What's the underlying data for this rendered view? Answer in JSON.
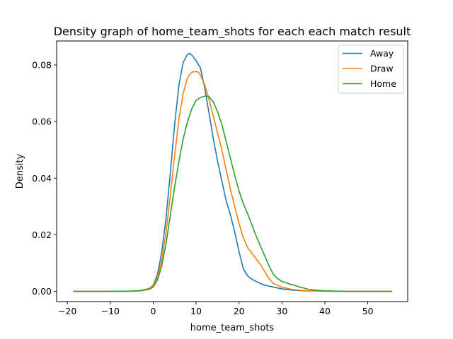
{
  "chart_data": {
    "type": "line",
    "title": "Density graph of home_team_shots for each each match result",
    "xlabel": "home_team_shots",
    "ylabel": "Density",
    "xlim": [
      -22.5,
      59.3
    ],
    "ylim": [
      -0.0036,
      0.0885
    ],
    "xticks": [
      -20,
      -10,
      0,
      10,
      20,
      30,
      40,
      50
    ],
    "xtick_labels": [
      "−20",
      "−10",
      "0",
      "10",
      "20",
      "30",
      "40",
      "50"
    ],
    "yticks": [
      0.0,
      0.02,
      0.04,
      0.06,
      0.08
    ],
    "ytick_labels": [
      "0.00",
      "0.02",
      "0.04",
      "0.06",
      "0.08"
    ],
    "grid": false,
    "legend_position": "top-right",
    "series": [
      {
        "name": "Away",
        "color": "#1f77b4",
        "x": [
          -18.5,
          -10,
          -5,
          -3,
          -1,
          0,
          1,
          2,
          3,
          4,
          5,
          6,
          7,
          8,
          8.5,
          9,
          10,
          11,
          12,
          13,
          14,
          15,
          16,
          17,
          18,
          19,
          20,
          21,
          22,
          23,
          24,
          25,
          26,
          28,
          30,
          32,
          35,
          40,
          45,
          50,
          55.5
        ],
        "y": [
          0,
          0,
          0.0001,
          0.0003,
          0.001,
          0.0022,
          0.006,
          0.014,
          0.026,
          0.042,
          0.059,
          0.073,
          0.081,
          0.0838,
          0.0841,
          0.0835,
          0.0815,
          0.079,
          0.072,
          0.063,
          0.054,
          0.046,
          0.039,
          0.032,
          0.027,
          0.021,
          0.014,
          0.008,
          0.0055,
          0.0043,
          0.0035,
          0.0028,
          0.0022,
          0.0015,
          0.0009,
          0.0005,
          0.0002,
          0.0001,
          0,
          0,
          0
        ]
      },
      {
        "name": "Draw",
        "color": "#ff7f0e",
        "x": [
          -18.5,
          -10,
          -5,
          -3,
          -1,
          0,
          1,
          2,
          3,
          4,
          5,
          6,
          7,
          8,
          9,
          10,
          10.5,
          11,
          12,
          13,
          14,
          15,
          16,
          17,
          18,
          19,
          20,
          21,
          22,
          23,
          24,
          25,
          26,
          27,
          28,
          30,
          32,
          34,
          36,
          40,
          45,
          50,
          55.5
        ],
        "y": [
          0,
          0,
          0.0001,
          0.0003,
          0.001,
          0.002,
          0.005,
          0.011,
          0.021,
          0.034,
          0.048,
          0.061,
          0.07,
          0.0755,
          0.0775,
          0.0777,
          0.0775,
          0.0765,
          0.073,
          0.068,
          0.062,
          0.056,
          0.05,
          0.043,
          0.036,
          0.03,
          0.024,
          0.019,
          0.0155,
          0.0135,
          0.0115,
          0.0095,
          0.007,
          0.0045,
          0.0028,
          0.0015,
          0.0008,
          0.0004,
          0.0002,
          0.0001,
          0,
          0,
          0
        ]
      },
      {
        "name": "Home",
        "color": "#2ca02c",
        "x": [
          -18.5,
          -10,
          -5,
          -3,
          -1,
          0,
          1,
          2,
          3,
          4,
          5,
          6,
          7,
          8,
          9,
          10,
          11,
          12,
          12.5,
          13,
          14,
          15,
          16,
          17,
          18,
          19,
          20,
          21,
          22,
          23,
          24,
          25,
          26,
          27,
          28,
          29,
          30,
          31,
          32,
          33,
          34,
          35,
          36,
          38,
          40,
          45,
          50,
          55.5
        ],
        "y": [
          0,
          0,
          0.0001,
          0.0002,
          0.0007,
          0.0015,
          0.004,
          0.009,
          0.017,
          0.027,
          0.037,
          0.046,
          0.054,
          0.06,
          0.0645,
          0.0675,
          0.0685,
          0.069,
          0.069,
          0.0688,
          0.067,
          0.0635,
          0.059,
          0.053,
          0.047,
          0.041,
          0.0355,
          0.031,
          0.0275,
          0.0235,
          0.0195,
          0.016,
          0.0125,
          0.009,
          0.006,
          0.0045,
          0.0035,
          0.003,
          0.0025,
          0.0021,
          0.0016,
          0.0012,
          0.0008,
          0.0004,
          0.0002,
          0,
          0,
          0
        ]
      }
    ]
  }
}
